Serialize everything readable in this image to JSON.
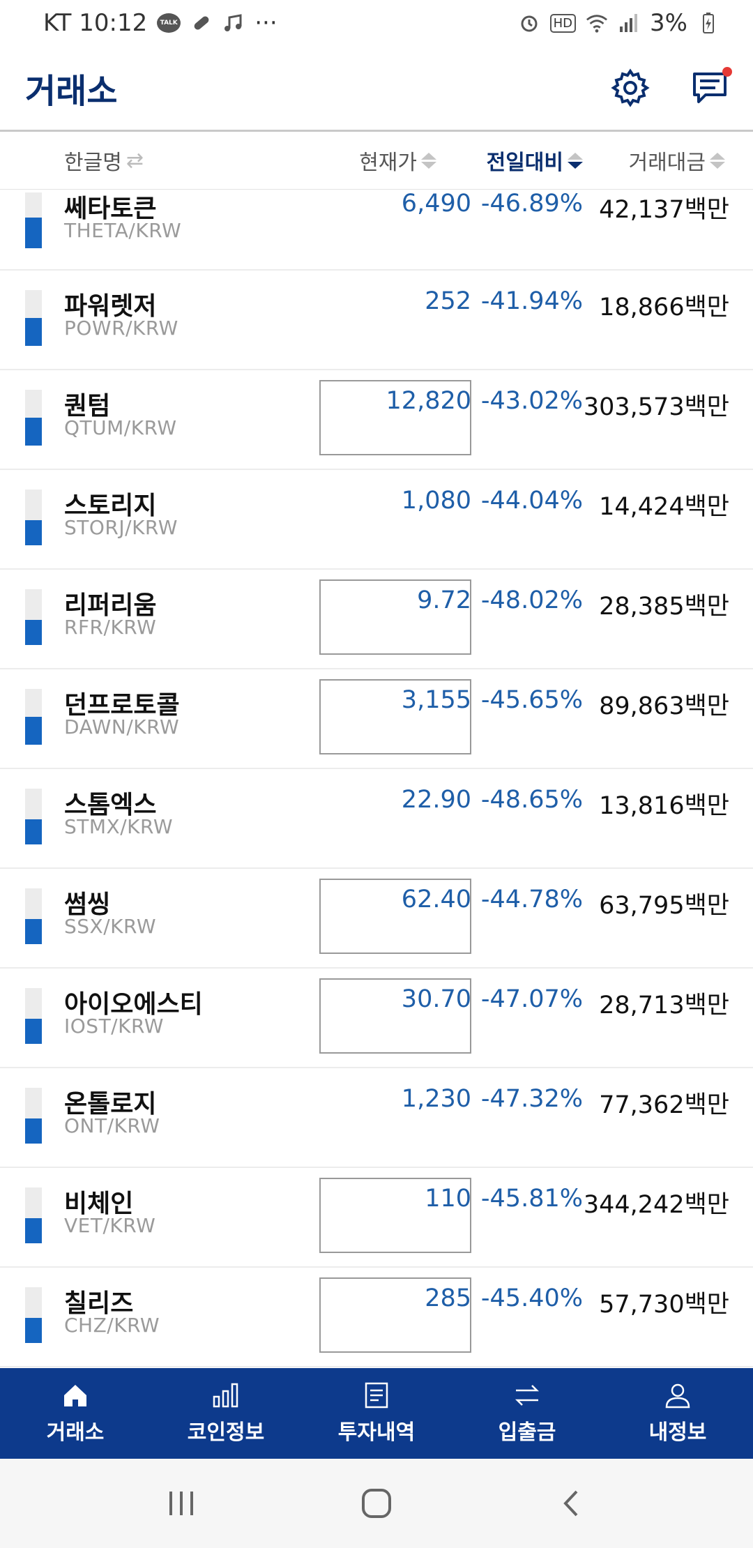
{
  "status_bar": {
    "carrier_time": "KT 10:12",
    "talk_badge": "TALK",
    "more": "···",
    "hd_badge": "HD",
    "battery": "3%"
  },
  "header": {
    "title": "거래소"
  },
  "columns": {
    "name": "한글명",
    "price": "현재가",
    "change": "전일대비",
    "volume": "거래대금"
  },
  "colors": {
    "brand": "#0d3a8c",
    "price_blue": "#1e5ea8",
    "bar_fill": "#1565c0"
  },
  "coins": [
    {
      "name": "쎄타토큰",
      "pair": "THETA/KRW",
      "price": "6,490",
      "change": "-46.89%",
      "volume": "42,137백만",
      "boxed": false,
      "bar_fill": 0.55
    },
    {
      "name": "파워렛저",
      "pair": "POWR/KRW",
      "price": "252",
      "change": "-41.94%",
      "volume": "18,866백만",
      "boxed": false,
      "bar_fill": 0.5
    },
    {
      "name": "퀀텀",
      "pair": "QTUM/KRW",
      "price": "12,820",
      "change": "-43.02%",
      "volume": "303,573백만",
      "boxed": true,
      "bar_fill": 0.5
    },
    {
      "name": "스토리지",
      "pair": "STORJ/KRW",
      "price": "1,080",
      "change": "-44.04%",
      "volume": "14,424백만",
      "boxed": false,
      "bar_fill": 0.45
    },
    {
      "name": "리퍼리움",
      "pair": "RFR/KRW",
      "price": "9.72",
      "change": "-48.02%",
      "volume": "28,385백만",
      "boxed": true,
      "bar_fill": 0.45
    },
    {
      "name": "던프로토콜",
      "pair": "DAWN/KRW",
      "price": "3,155",
      "change": "-45.65%",
      "volume": "89,863백만",
      "boxed": true,
      "bar_fill": 0.5
    },
    {
      "name": "스톰엑스",
      "pair": "STMX/KRW",
      "price": "22.90",
      "change": "-48.65%",
      "volume": "13,816백만",
      "boxed": false,
      "bar_fill": 0.45
    },
    {
      "name": "썸씽",
      "pair": "SSX/KRW",
      "price": "62.40",
      "change": "-44.78%",
      "volume": "63,795백만",
      "boxed": true,
      "bar_fill": 0.45
    },
    {
      "name": "아이오에스티",
      "pair": "IOST/KRW",
      "price": "30.70",
      "change": "-47.07%",
      "volume": "28,713백만",
      "boxed": true,
      "bar_fill": 0.45
    },
    {
      "name": "온톨로지",
      "pair": "ONT/KRW",
      "price": "1,230",
      "change": "-47.32%",
      "volume": "77,362백만",
      "boxed": false,
      "bar_fill": 0.45
    },
    {
      "name": "비체인",
      "pair": "VET/KRW",
      "price": "110",
      "change": "-45.81%",
      "volume": "344,242백만",
      "boxed": true,
      "bar_fill": 0.45
    },
    {
      "name": "칠리즈",
      "pair": "CHZ/KRW",
      "price": "285",
      "change": "-45.40%",
      "volume": "57,730백만",
      "boxed": true,
      "bar_fill": 0.45
    }
  ],
  "bottom_nav": [
    {
      "label": "거래소",
      "icon": "home-icon"
    },
    {
      "label": "코인정보",
      "icon": "bar-chart-icon"
    },
    {
      "label": "투자내역",
      "icon": "document-icon"
    },
    {
      "label": "입출금",
      "icon": "transfer-icon"
    },
    {
      "label": "내정보",
      "icon": "user-icon"
    }
  ]
}
